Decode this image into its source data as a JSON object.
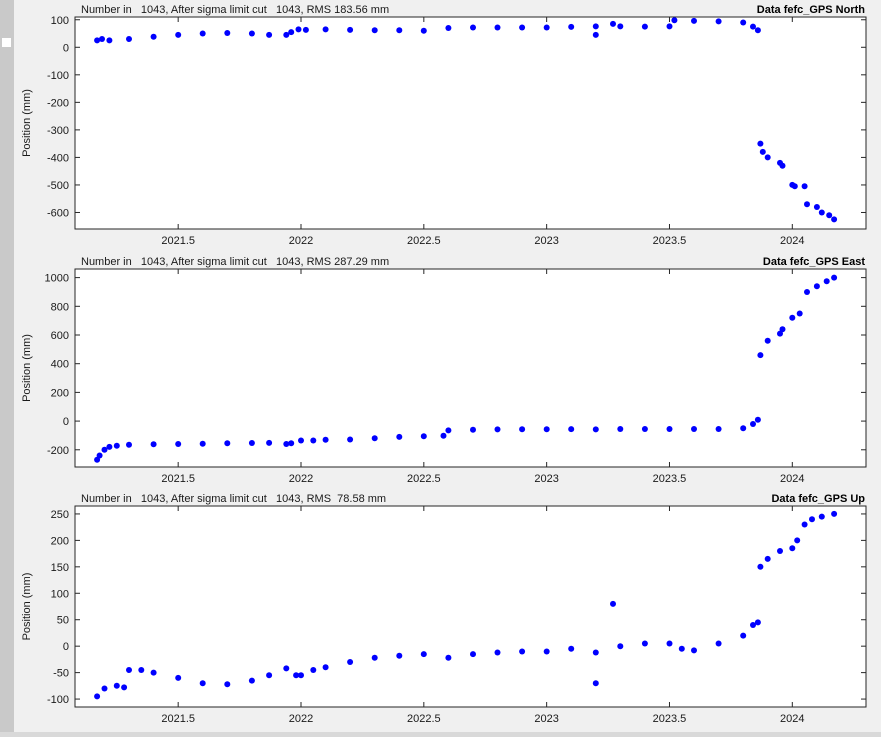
{
  "colors": {
    "marker": "#0000ff",
    "axis": "#262626",
    "background": "#f0f0f0",
    "plot_background": "#ffffff"
  },
  "chart_data": [
    {
      "type": "scatter",
      "header": "Number in   1043, After sigma limit cut   1043, RMS 183.56 mm",
      "title": "Data fefc_GPS North",
      "ylabel": "Position (mm)",
      "xlabel": "",
      "xlim": [
        2021.08,
        2024.3
      ],
      "ylim": [
        -660,
        110
      ],
      "xticks": [
        2021.5,
        2022,
        2022.5,
        2023,
        2023.5,
        2024
      ],
      "xtick_labels": [
        "2021.5",
        "2022",
        "2022.5",
        "2023",
        "2023.5",
        "2024"
      ],
      "yticks": [
        100,
        0,
        -100,
        -200,
        -300,
        -400,
        -500,
        -600
      ],
      "ytick_labels": [
        "100",
        "0",
        "-100",
        "-200",
        "-300",
        "-400",
        "-500",
        "-600"
      ],
      "grid": false,
      "x": [
        2021.17,
        2021.19,
        2021.22,
        2021.3,
        2021.4,
        2021.5,
        2021.6,
        2021.7,
        2021.8,
        2021.87,
        2021.94,
        2021.96,
        2021.99,
        2022.02,
        2022.1,
        2022.2,
        2022.3,
        2022.4,
        2022.5,
        2022.6,
        2022.7,
        2022.8,
        2022.9,
        2023.0,
        2023.1,
        2023.2,
        2023.3,
        2023.4,
        2023.5,
        2023.52,
        2023.6,
        2023.7,
        2023.8,
        2023.84,
        2023.86,
        2023.87,
        2023.88,
        2023.9,
        2023.95,
        2023.96,
        2024.0,
        2024.01,
        2024.05,
        2024.06,
        2024.1,
        2024.12,
        2024.15,
        2024.17,
        2023.2,
        2023.27
      ],
      "y": [
        25,
        30,
        25,
        30,
        38,
        45,
        50,
        52,
        50,
        45,
        45,
        55,
        65,
        63,
        65,
        63,
        62,
        62,
        60,
        70,
        72,
        72,
        72,
        72,
        74,
        76,
        76,
        75,
        76,
        98,
        96,
        94,
        90,
        75,
        62,
        -350,
        -380,
        -400,
        -420,
        -430,
        -500,
        -505,
        -505,
        -570,
        -580,
        -600,
        -610,
        -625,
        45,
        85
      ]
    },
    {
      "type": "scatter",
      "header": "Number in   1043, After sigma limit cut   1043, RMS 287.29 mm",
      "title": "Data fefc_GPS East",
      "ylabel": "Position (mm)",
      "xlabel": "",
      "xlim": [
        2021.08,
        2024.3
      ],
      "ylim": [
        -320,
        1060
      ],
      "xticks": [
        2021.5,
        2022,
        2022.5,
        2023,
        2023.5,
        2024
      ],
      "xtick_labels": [
        "2021.5",
        "2022",
        "2022.5",
        "2023",
        "2023.5",
        "2024"
      ],
      "yticks": [
        1000,
        800,
        600,
        400,
        200,
        0,
        -200
      ],
      "ytick_labels": [
        "1000",
        "800",
        "600",
        "400",
        "200",
        "0",
        "-200"
      ],
      "grid": false,
      "x": [
        2021.17,
        2021.18,
        2021.2,
        2021.22,
        2021.25,
        2021.3,
        2021.4,
        2021.5,
        2021.6,
        2021.7,
        2021.8,
        2021.87,
        2021.94,
        2021.96,
        2022.0,
        2022.05,
        2022.1,
        2022.2,
        2022.3,
        2022.4,
        2022.5,
        2022.58,
        2022.6,
        2022.7,
        2022.8,
        2022.9,
        2023.0,
        2023.1,
        2023.2,
        2023.3,
        2023.4,
        2023.5,
        2023.6,
        2023.7,
        2023.8,
        2023.84,
        2023.86,
        2023.87,
        2023.9,
        2023.95,
        2023.96,
        2024.0,
        2024.03,
        2024.06,
        2024.1,
        2024.14,
        2024.17
      ],
      "y": [
        -270,
        -240,
        -200,
        -180,
        -172,
        -165,
        -162,
        -160,
        -158,
        -155,
        -153,
        -152,
        -160,
        -155,
        -135,
        -135,
        -130,
        -128,
        -120,
        -110,
        -105,
        -102,
        -65,
        -60,
        -58,
        -57,
        -57,
        -56,
        -58,
        -55,
        -55,
        -55,
        -55,
        -55,
        -50,
        -20,
        10,
        460,
        560,
        610,
        640,
        720,
        750,
        900,
        940,
        975,
        1000
      ]
    },
    {
      "type": "scatter",
      "header": "Number in   1043, After sigma limit cut   1043, RMS  78.58 mm",
      "title": "Data fefc_GPS Up",
      "ylabel": "Position (mm)",
      "xlabel": "",
      "xlim": [
        2021.08,
        2024.3
      ],
      "ylim": [
        -115,
        265
      ],
      "xticks": [
        2021.5,
        2022,
        2022.5,
        2023,
        2023.5,
        2024
      ],
      "xtick_labels": [
        "2021.5",
        "2022",
        "2022.5",
        "2023",
        "2023.5",
        "2024"
      ],
      "yticks": [
        250,
        200,
        150,
        100,
        50,
        0,
        -50,
        -100
      ],
      "ytick_labels": [
        "250",
        "200",
        "150",
        "100",
        "50",
        "0",
        "-50",
        "-100"
      ],
      "grid": false,
      "x": [
        2021.17,
        2021.2,
        2021.25,
        2021.28,
        2021.3,
        2021.35,
        2021.4,
        2021.5,
        2021.6,
        2021.7,
        2021.8,
        2021.87,
        2021.94,
        2021.98,
        2022.0,
        2022.05,
        2022.1,
        2022.2,
        2022.3,
        2022.4,
        2022.5,
        2022.6,
        2022.7,
        2022.8,
        2022.9,
        2023.0,
        2023.1,
        2023.2,
        2023.3,
        2023.4,
        2023.5,
        2023.55,
        2023.6,
        2023.7,
        2023.8,
        2023.84,
        2023.86,
        2023.87,
        2023.9,
        2023.95,
        2024.0,
        2024.02,
        2024.05,
        2024.08,
        2024.12,
        2024.17,
        2023.2,
        2023.27
      ],
      "y": [
        -95,
        -80,
        -75,
        -78,
        -45,
        -45,
        -50,
        -60,
        -70,
        -72,
        -65,
        -55,
        -42,
        -55,
        -55,
        -45,
        -40,
        -30,
        -22,
        -18,
        -15,
        -22,
        -15,
        -12,
        -10,
        -10,
        -5,
        -12,
        0,
        5,
        5,
        -5,
        -8,
        5,
        20,
        40,
        45,
        150,
        165,
        180,
        185,
        200,
        230,
        240,
        245,
        250,
        -70,
        80
      ]
    }
  ]
}
